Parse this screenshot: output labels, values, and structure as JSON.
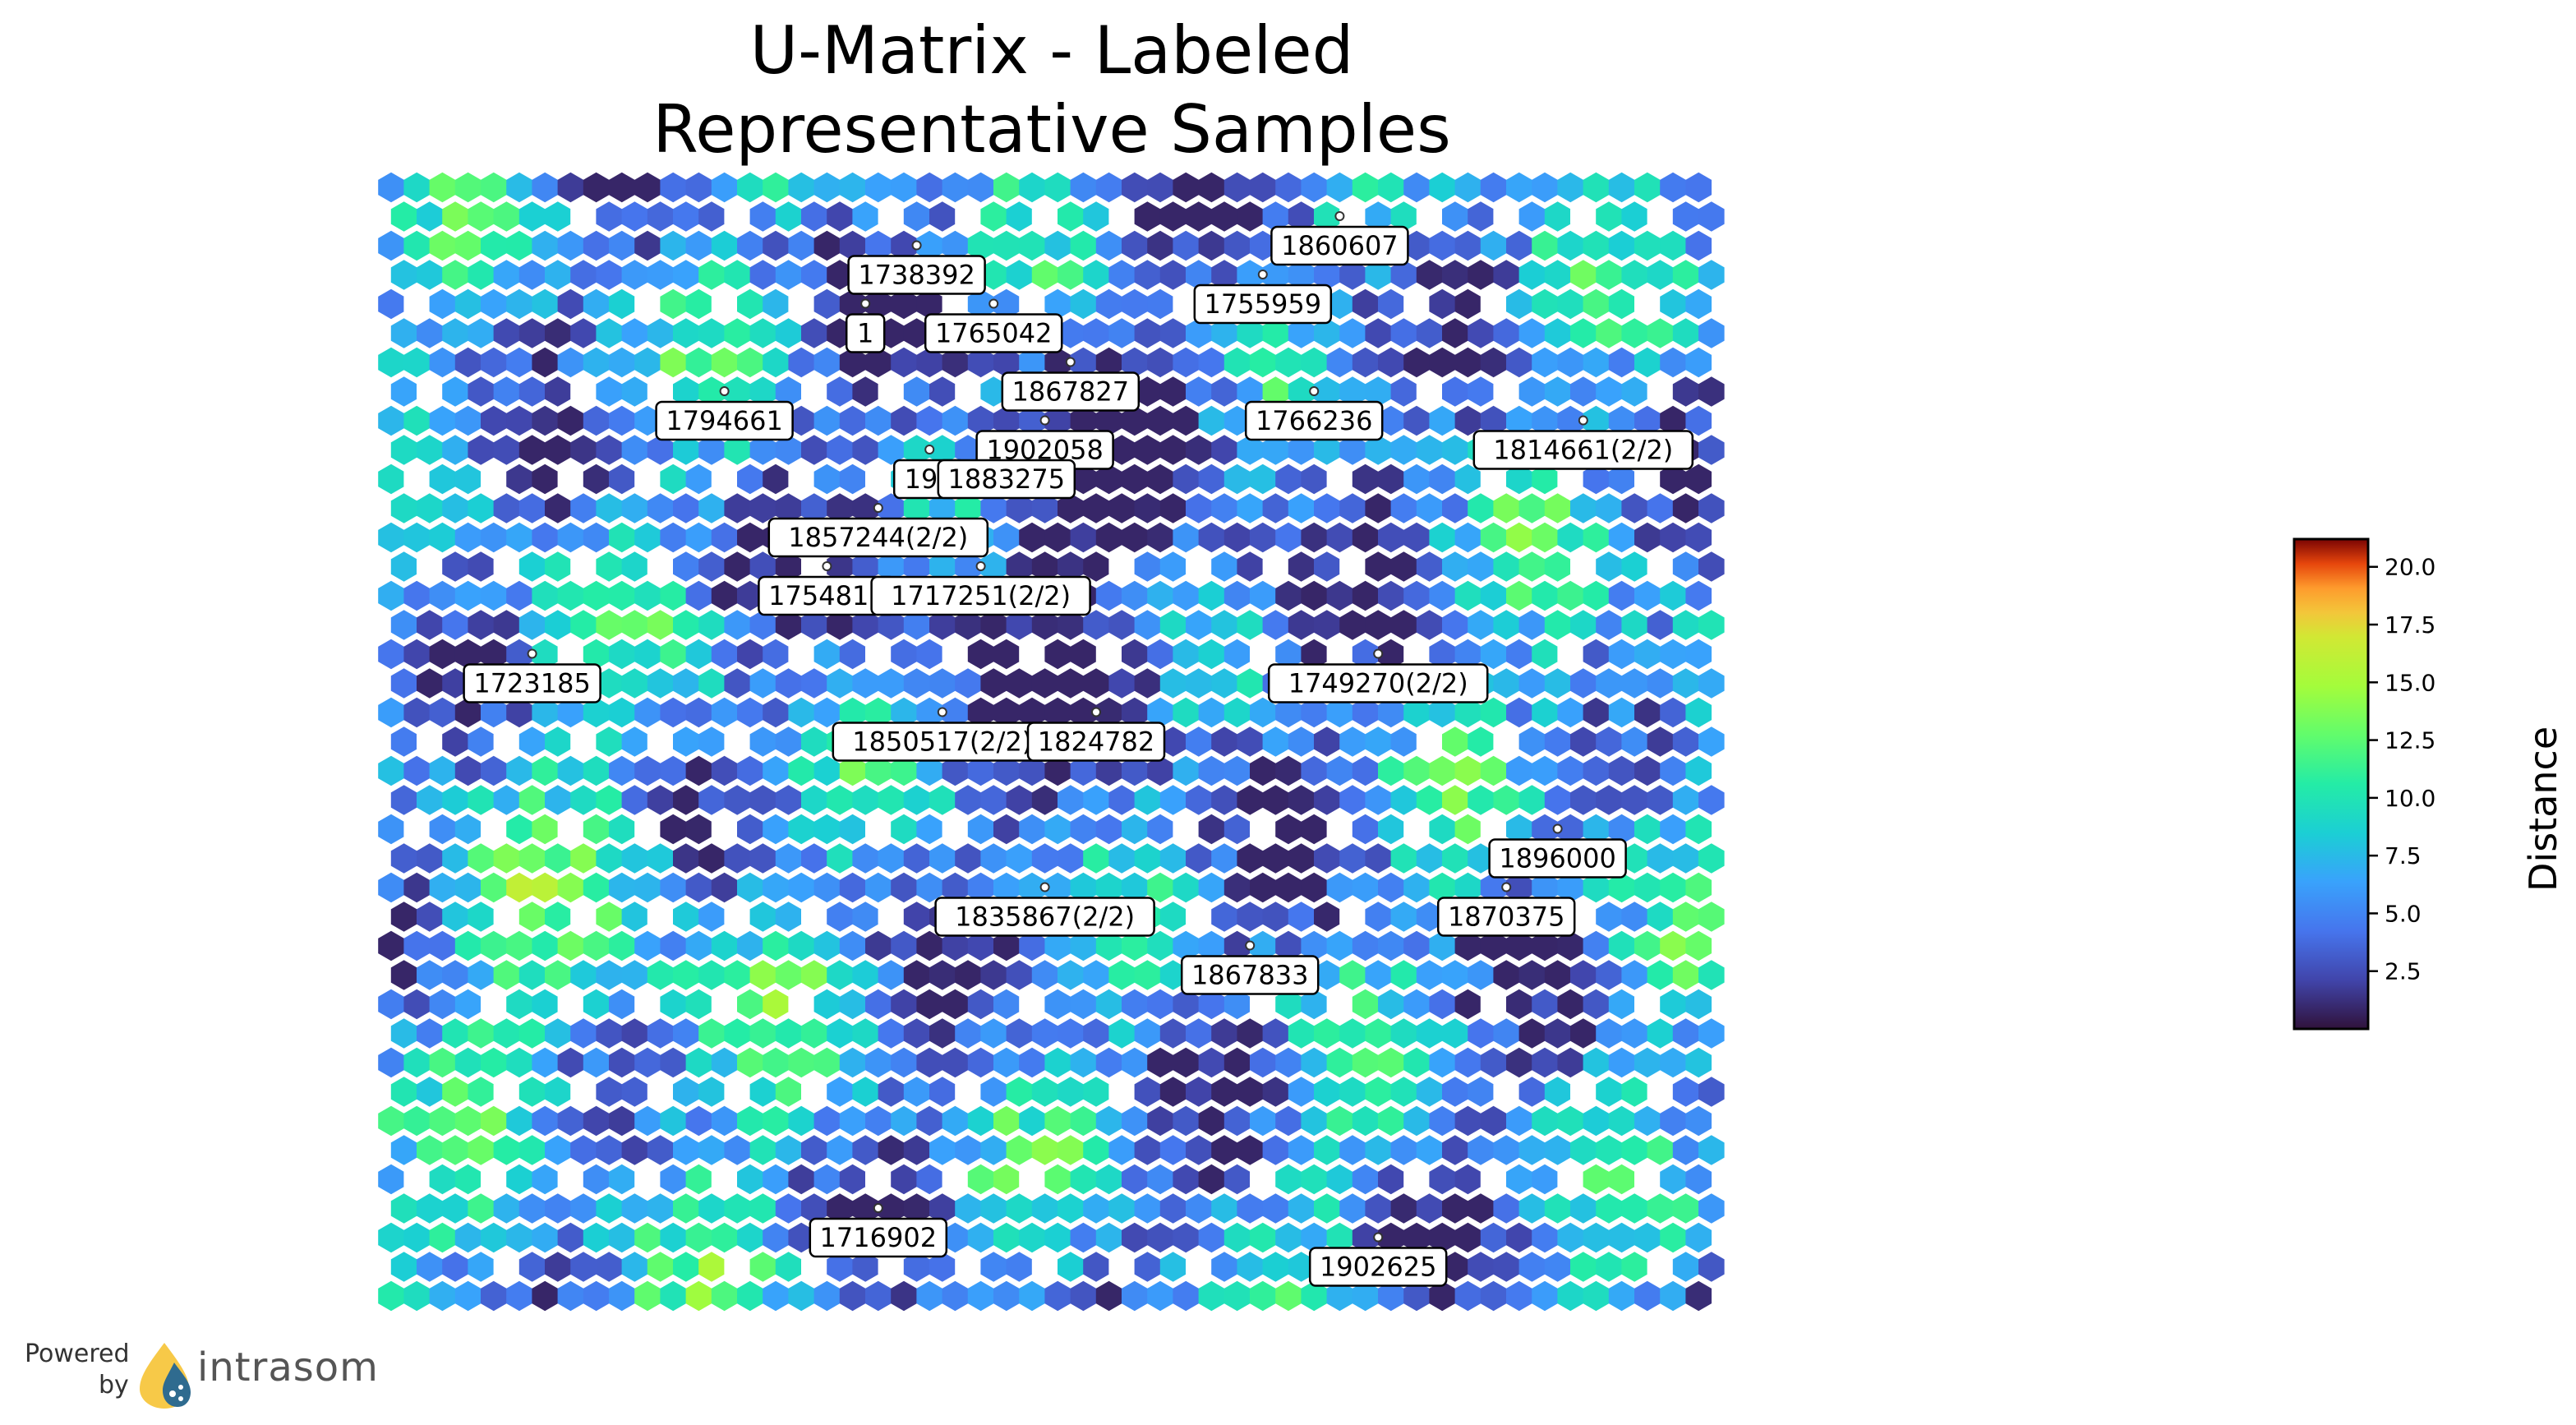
{
  "title": {
    "line1": "U-Matrix - Labeled",
    "line2": "Representative Samples"
  },
  "chart_data": {
    "type": "heatmap",
    "grid": "hexagonal",
    "colormap": "turbo",
    "title": "U-Matrix - Labeled Representative Samples",
    "colorbar": {
      "label": "Distance",
      "range": [
        0,
        21.2
      ],
      "ticks": [
        "2.5",
        "5.0",
        "7.5",
        "10.0",
        "12.5",
        "15.0",
        "17.5",
        "20.0"
      ]
    },
    "labels": [
      {
        "text": "1738392",
        "col": 20,
        "row": 3
      },
      {
        "text": "1860607",
        "col": 37,
        "row": 2
      },
      {
        "text": "1755959",
        "col": 34,
        "row": 4
      },
      {
        "text": "1",
        "col": 18,
        "row": 5
      },
      {
        "text": "1765042",
        "col": 23,
        "row": 5
      },
      {
        "text": "1867827",
        "col": 26,
        "row": 7
      },
      {
        "text": "1794661",
        "col": 13,
        "row": 8
      },
      {
        "text": "1766236",
        "col": 36,
        "row": 8
      },
      {
        "text": "1902058",
        "col": 25,
        "row": 9
      },
      {
        "text": "1814661(2/2)",
        "col": 46,
        "row": 9
      },
      {
        "text": "190",
        "col": 21,
        "row": 10
      },
      {
        "text": "1883275",
        "col": 24,
        "row": 10
      },
      {
        "text": "1857244(2/2)",
        "col": 19,
        "row": 12
      },
      {
        "text": "1754817",
        "col": 17,
        "row": 14
      },
      {
        "text": "1717251(2/2)",
        "col": 23,
        "row": 14
      },
      {
        "text": "1723185",
        "col": 5,
        "row": 17
      },
      {
        "text": "1749270(2/2)",
        "col": 38,
        "row": 17
      },
      {
        "text": "1850517(2/2)",
        "col": 21,
        "row": 19
      },
      {
        "text": "1824782",
        "col": 27,
        "row": 19
      },
      {
        "text": "1896000",
        "col": 45,
        "row": 23
      },
      {
        "text": "1835867(2/2)",
        "col": 25,
        "row": 25
      },
      {
        "text": "1870375",
        "col": 43,
        "row": 25
      },
      {
        "text": "1867833",
        "col": 33,
        "row": 27
      },
      {
        "text": "1716902",
        "col": 19,
        "row": 36
      },
      {
        "text": "1902625",
        "col": 38,
        "row": 37
      }
    ]
  },
  "branding": {
    "powered": "Powered",
    "by": "by",
    "name": "intrasom"
  }
}
